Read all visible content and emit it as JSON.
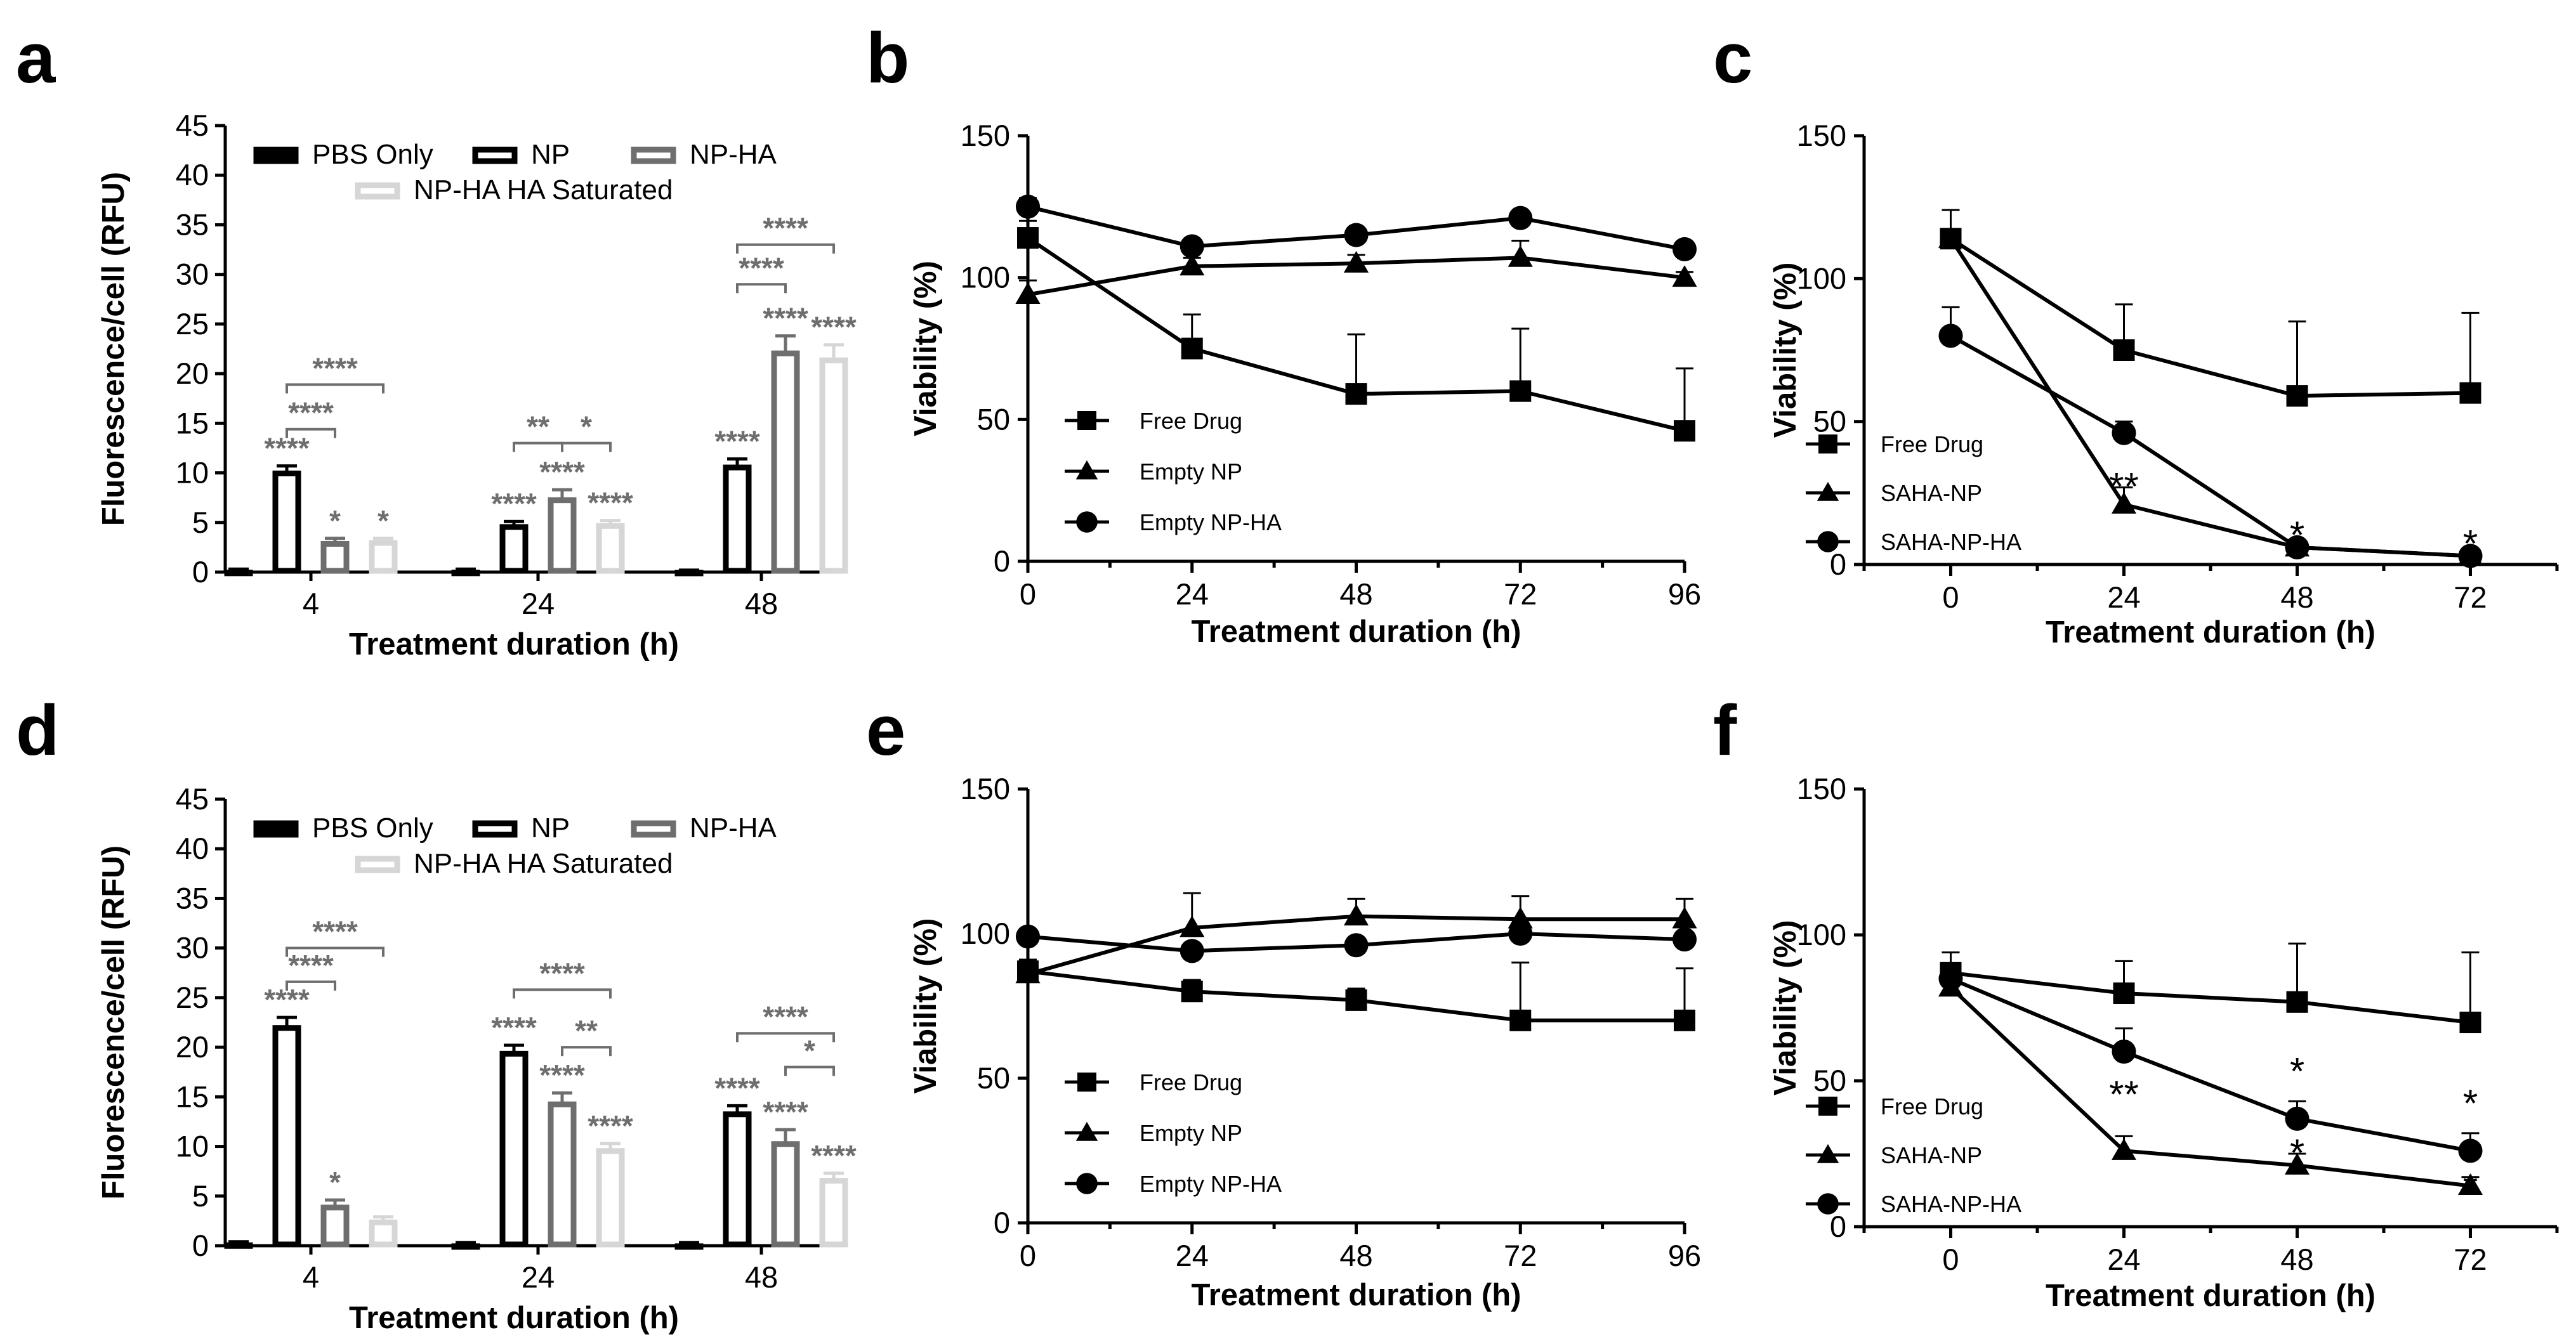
{
  "colors": {
    "pbs": "#000000",
    "np": "#000000",
    "np_ha": "#6e6e6e",
    "np_ha_sat": "#d6d6d6",
    "line": "#000000",
    "sig": "#6e6e6e"
  },
  "chart_data": [
    {
      "panel": "a",
      "type": "bar",
      "ylabel": "Fluorescence/cell (RFU)",
      "xlabel": "Treatment duration (h)",
      "ylim": [
        0,
        45
      ],
      "yticks": [
        "0",
        "5",
        "10",
        "15",
        "20",
        "25",
        "30",
        "35",
        "40",
        "45"
      ],
      "categories": [
        "4",
        "24",
        "48"
      ],
      "legend": [
        "PBS Only",
        "NP",
        "NP-HA",
        "NP-HA HA Saturated"
      ],
      "series": [
        {
          "name": "PBS Only",
          "values": [
            0.2,
            0.2,
            0.1
          ],
          "errors": [
            0.1,
            0.1,
            0.1
          ]
        },
        {
          "name": "NP",
          "values": [
            10.2,
            4.8,
            10.8
          ],
          "errors": [
            0.5,
            0.3,
            0.6
          ]
        },
        {
          "name": "NP-HA",
          "values": [
            3.1,
            7.5,
            22.3
          ],
          "errors": [
            0.3,
            0.8,
            1.5
          ]
        },
        {
          "name": "NP-HA HA Saturated",
          "values": [
            3.2,
            4.9,
            21.6
          ],
          "errors": [
            0.2,
            0.3,
            1.3
          ]
        }
      ],
      "bar_labels": [
        [
          "",
          "****",
          "*",
          "*"
        ],
        [
          "",
          "****",
          "****",
          "****"
        ],
        [
          "",
          "****",
          "****",
          "****"
        ]
      ],
      "brackets": [
        {
          "group": 0,
          "from": 1,
          "to": 2,
          "y": 14.4,
          "label": "****"
        },
        {
          "group": 0,
          "from": 1,
          "to": 3,
          "y": 18.9,
          "label": "****"
        },
        {
          "group": 1,
          "from": 1,
          "to": 2,
          "y": 13.0,
          "label": "**"
        },
        {
          "group": 1,
          "from": 2,
          "to": 3,
          "y": 13.0,
          "label": "*"
        },
        {
          "group": 2,
          "from": 1,
          "to": 2,
          "y": 29.0,
          "label": "****"
        },
        {
          "group": 2,
          "from": 1,
          "to": 3,
          "y": 33.0,
          "label": "****"
        }
      ]
    },
    {
      "panel": "b",
      "type": "line",
      "ylabel": "Viability (%)",
      "xlabel": "Treatment duration (h)",
      "ylim": [
        0,
        150
      ],
      "xlim": [
        0,
        96
      ],
      "xticks": [
        "0",
        "24",
        "48",
        "72",
        "96"
      ],
      "yticks": [
        "0",
        "50",
        "100",
        "150"
      ],
      "legend_position": "bottom-left",
      "series": [
        {
          "name": "Free Drug",
          "marker": "square",
          "x": [
            0,
            24,
            48,
            72,
            96
          ],
          "values": [
            114,
            75,
            59,
            60,
            46
          ],
          "errors": [
            6,
            12,
            21,
            22,
            22
          ]
        },
        {
          "name": "Empty NP",
          "marker": "triangle",
          "x": [
            0,
            24,
            48,
            72,
            96
          ],
          "values": [
            94,
            104,
            105,
            107,
            100
          ],
          "errors": [
            5,
            3,
            3,
            6,
            2
          ]
        },
        {
          "name": "Empty NP-HA",
          "marker": "circle",
          "x": [
            0,
            24,
            48,
            72,
            96
          ],
          "values": [
            125,
            111,
            115,
            121,
            110
          ],
          "errors": [
            3,
            2,
            2,
            2,
            2
          ]
        }
      ]
    },
    {
      "panel": "c",
      "type": "line",
      "ylabel": "Viability (%)",
      "xlabel": "Treatment duration (h)",
      "ylim": [
        0,
        150
      ],
      "xlim": [
        -12,
        84
      ],
      "xticks": [
        "0",
        "24",
        "48",
        "72"
      ],
      "yticks": [
        "0",
        "50",
        "100",
        "150"
      ],
      "legend_position": "bottom-left",
      "series": [
        {
          "name": "Free Drug",
          "marker": "square",
          "x": [
            0,
            24,
            48,
            72
          ],
          "values": [
            114,
            75,
            59,
            60
          ],
          "errors": [
            10,
            16,
            26,
            28
          ]
        },
        {
          "name": "SAHA-NP",
          "marker": "triangle",
          "x": [
            0,
            24,
            48,
            72
          ],
          "values": [
            114,
            21,
            6,
            3
          ],
          "errors": [
            3,
            6,
            1,
            1
          ]
        },
        {
          "name": "SAHA-NP-HA",
          "marker": "circle",
          "x": [
            0,
            24,
            48,
            72
          ],
          "values": [
            80,
            46,
            6,
            3
          ],
          "errors": [
            10,
            4,
            1,
            1
          ]
        }
      ],
      "annotations": [
        {
          "x": 24,
          "y": 25,
          "text": "**"
        },
        {
          "x": 48,
          "y": 8,
          "text": "*"
        },
        {
          "x": 72,
          "y": 5,
          "text": "*"
        }
      ]
    },
    {
      "panel": "d",
      "type": "bar",
      "ylabel": "Fluorescence/cell (RFU)",
      "xlabel": "Treatment duration (h)",
      "ylim": [
        0,
        45
      ],
      "yticks": [
        "0",
        "5",
        "10",
        "15",
        "20",
        "25",
        "30",
        "35",
        "40",
        "45"
      ],
      "categories": [
        "4",
        "24",
        "48"
      ],
      "legend": [
        "PBS Only",
        "NP",
        "NP-HA",
        "NP-HA HA Saturated"
      ],
      "series": [
        {
          "name": "PBS Only",
          "values": [
            0.3,
            0.2,
            0.2
          ],
          "errors": [
            0.1,
            0.1,
            0.1
          ]
        },
        {
          "name": "NP",
          "values": [
            22.2,
            19.6,
            13.5
          ],
          "errors": [
            0.8,
            0.6,
            0.6
          ]
        },
        {
          "name": "NP-HA",
          "values": [
            4.1,
            14.5,
            10.5
          ],
          "errors": [
            0.5,
            0.9,
            1.2
          ]
        },
        {
          "name": "NP-HA HA Saturated",
          "values": [
            2.6,
            9.8,
            6.8
          ],
          "errors": [
            0.3,
            0.5,
            0.5
          ]
        }
      ],
      "bar_labels": [
        [
          "",
          "****",
          "*",
          ""
        ],
        [
          "",
          "****",
          "****",
          "****"
        ],
        [
          "",
          "****",
          "****",
          "****"
        ]
      ],
      "brackets": [
        {
          "group": 0,
          "from": 1,
          "to": 2,
          "y": 26.6,
          "label": "****"
        },
        {
          "group": 0,
          "from": 1,
          "to": 3,
          "y": 30.0,
          "label": "****"
        },
        {
          "group": 1,
          "from": 1,
          "to": 3,
          "y": 25.8,
          "label": "****"
        },
        {
          "group": 1,
          "from": 2,
          "to": 3,
          "y": 20.0,
          "label": "**"
        },
        {
          "group": 2,
          "from": 1,
          "to": 3,
          "y": 21.4,
          "label": "****"
        },
        {
          "group": 2,
          "from": 2,
          "to": 3,
          "y": 18.0,
          "label": "*"
        }
      ]
    },
    {
      "panel": "e",
      "type": "line",
      "ylabel": "Viability (%)",
      "xlabel": "Treatment duration (h)",
      "ylim": [
        0,
        150
      ],
      "xlim": [
        0,
        96
      ],
      "xticks": [
        "0",
        "24",
        "48",
        "72",
        "96"
      ],
      "yticks": [
        "0",
        "50",
        "100",
        "150"
      ],
      "legend_position": "bottom-left",
      "series": [
        {
          "name": "Free Drug",
          "marker": "square",
          "x": [
            0,
            24,
            48,
            72,
            96
          ],
          "values": [
            87,
            80,
            77,
            70,
            70
          ],
          "errors": [
            4,
            4,
            4,
            20,
            18
          ]
        },
        {
          "name": "Empty NP",
          "marker": "triangle",
          "x": [
            0,
            24,
            48,
            72,
            96
          ],
          "values": [
            86,
            102,
            106,
            105,
            105
          ],
          "errors": [
            3,
            12,
            6,
            8,
            7
          ]
        },
        {
          "name": "Empty NP-HA",
          "marker": "circle",
          "x": [
            0,
            24,
            48,
            72,
            96
          ],
          "values": [
            99,
            94,
            96,
            100,
            98
          ],
          "errors": [
            2,
            2,
            2,
            2,
            2
          ]
        }
      ]
    },
    {
      "panel": "f",
      "type": "line",
      "ylabel": "Viability (%)",
      "xlabel": "Treatment duration (h)",
      "ylim": [
        0,
        150
      ],
      "xlim": [
        -12,
        84
      ],
      "xticks": [
        "0",
        "24",
        "48",
        "72"
      ],
      "yticks": [
        "0",
        "50",
        "100",
        "150"
      ],
      "legend_position": "bottom-left",
      "series": [
        {
          "name": "Free Drug",
          "marker": "square",
          "x": [
            0,
            24,
            48,
            72
          ],
          "values": [
            87,
            80,
            77,
            70
          ],
          "errors": [
            7,
            11,
            20,
            24
          ]
        },
        {
          "name": "SAHA-NP",
          "marker": "triangle",
          "x": [
            0,
            24,
            48,
            72
          ],
          "values": [
            82,
            26,
            21,
            14
          ],
          "errors": [
            3,
            5,
            4,
            3
          ]
        },
        {
          "name": "SAHA-NP-HA",
          "marker": "circle",
          "x": [
            0,
            24,
            48,
            72
          ],
          "values": [
            85,
            60,
            37,
            26
          ],
          "errors": [
            3,
            8,
            6,
            6
          ]
        }
      ],
      "annotations": [
        {
          "x": 24,
          "y": 43,
          "text": "**"
        },
        {
          "x": 48,
          "y": 51,
          "text": "*"
        },
        {
          "x": 48,
          "y": 23,
          "text": "*"
        },
        {
          "x": 72,
          "y": 40,
          "text": "*"
        },
        {
          "x": 72,
          "y": 11,
          "text": "*"
        }
      ]
    }
  ]
}
